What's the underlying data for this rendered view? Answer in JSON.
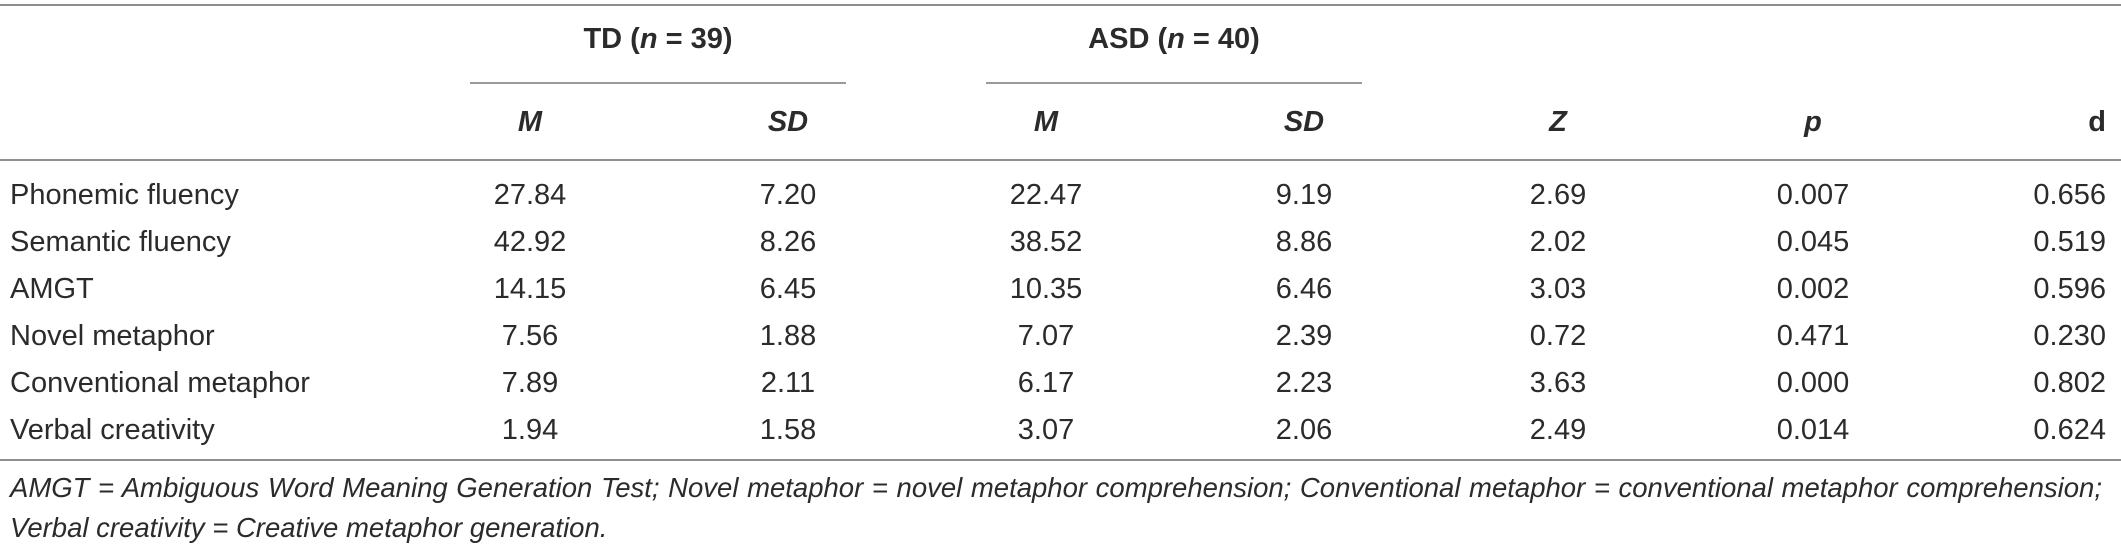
{
  "table": {
    "groups": [
      {
        "name": "TD",
        "n_label": "n",
        "n_text": " = 39"
      },
      {
        "name": "ASD",
        "n_label": "n",
        "n_text": " = 40"
      }
    ],
    "columns": [
      "M",
      "SD",
      "M",
      "SD",
      "Z",
      "p",
      "d"
    ],
    "rows": [
      {
        "label": "Phonemic fluency",
        "values": [
          "27.84",
          "7.20",
          "22.47",
          "9.19",
          "2.69",
          "0.007",
          "0.656"
        ]
      },
      {
        "label": "Semantic fluency",
        "values": [
          "42.92",
          "8.26",
          "38.52",
          "8.86",
          "2.02",
          "0.045",
          "0.519"
        ]
      },
      {
        "label": "AMGT",
        "values": [
          "14.15",
          "6.45",
          "10.35",
          "6.46",
          "3.03",
          "0.002",
          "0.596"
        ]
      },
      {
        "label": "Novel metaphor",
        "values": [
          "7.56",
          "1.88",
          "7.07",
          "2.39",
          "0.72",
          "0.471",
          "0.230"
        ]
      },
      {
        "label": "Conventional metaphor",
        "values": [
          "7.89",
          "2.11",
          "6.17",
          "2.23",
          "3.63",
          "0.000",
          "0.802"
        ]
      },
      {
        "label": "Verbal creativity",
        "values": [
          "1.94",
          "1.58",
          "3.07",
          "2.06",
          "2.49",
          "0.014",
          "0.624"
        ]
      }
    ],
    "footnote": "AMGT = Ambiguous Word Meaning Generation Test; Novel metaphor = novel metaphor comprehension; Conventional metaphor = conventional metaphor comprehension; Verbal creativity = Creative metaphor generation."
  }
}
